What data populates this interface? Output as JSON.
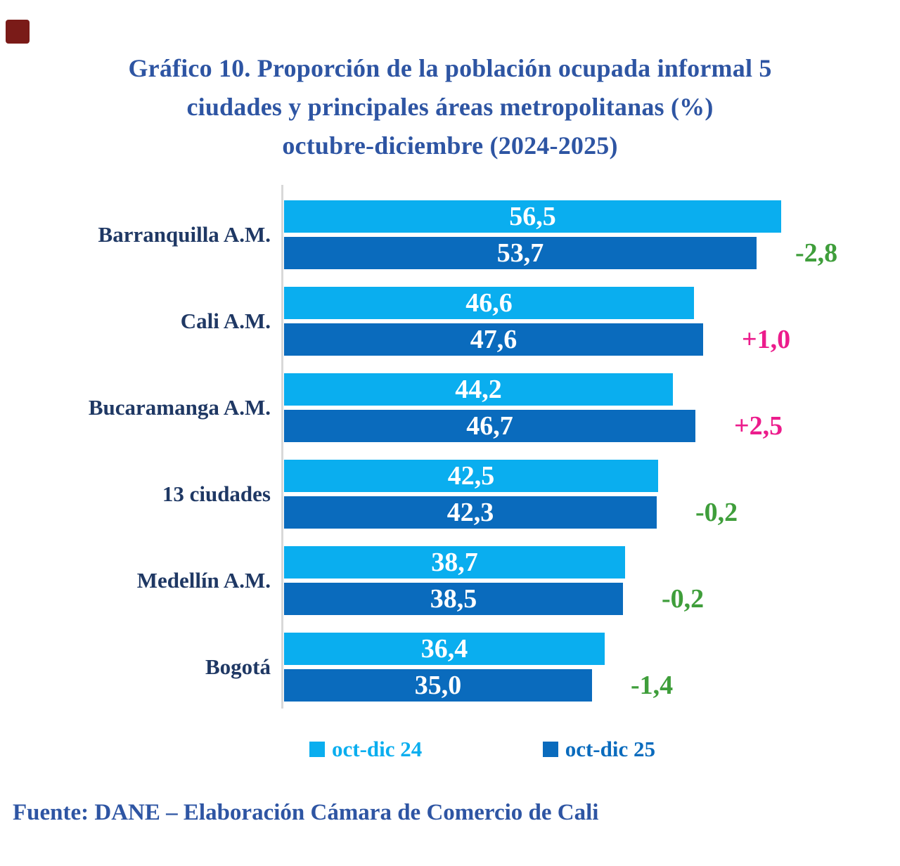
{
  "page": {
    "title_lines": [
      "Gráfico 10. Proporción de la población ocupada informal 5",
      "ciudades y principales áreas metropolitanas (%)",
      "octubre-diciembre (2024-2025)"
    ],
    "footer": "Fuente: DANE – Elaboración Cámara de Comercio de Cali"
  },
  "colors": {
    "title_blue": "#2e55a3",
    "category_navy": "#1f3864",
    "light_blue": "#0aaeef",
    "dark_blue": "#0a6bbd",
    "delta_green": "#3f9e3b",
    "delta_pink": "#ec1c8c",
    "axis_gray": "#d8d8d8",
    "red_marker": "#7a1b18"
  },
  "chart_data": {
    "type": "bar",
    "orientation": "horizontal",
    "title": "Gráfico 10. Proporción de la población ocupada informal 5 ciudades y principales áreas metropolitanas (%) octubre-diciembre (2024-2025)",
    "categories": [
      "Barranquilla A.M.",
      "Cali A.M.",
      "Bucaramanga A.M.",
      "13 ciudades",
      "Medellín A.M.",
      "Bogotá"
    ],
    "series": [
      {
        "name": "oct-dic 24",
        "color": "#0aaeef",
        "values": [
          56.5,
          46.6,
          44.2,
          42.5,
          38.7,
          36.4
        ],
        "labels": [
          "56,5",
          "46,6",
          "44,2",
          "42,5",
          "38,7",
          "36,4"
        ]
      },
      {
        "name": "oct-dic 25",
        "color": "#0a6bbd",
        "values": [
          53.7,
          47.6,
          46.7,
          42.3,
          38.5,
          35.0
        ],
        "labels": [
          "53,7",
          "47,6",
          "46,7",
          "42,3",
          "38,5",
          "35,0"
        ]
      }
    ],
    "deltas": [
      {
        "text": "-2,8",
        "color": "#3f9e3b"
      },
      {
        "text": "+1,0",
        "color": "#ec1c8c"
      },
      {
        "text": "+2,5",
        "color": "#ec1c8c"
      },
      {
        "text": "-0,2",
        "color": "#3f9e3b"
      },
      {
        "text": "-0,2",
        "color": "#3f9e3b"
      },
      {
        "text": "-1,4",
        "color": "#3f9e3b"
      }
    ],
    "xlim": [
      0,
      58.3
    ],
    "grid": false,
    "legend_position": "bottom",
    "value_format": "comma-decimal"
  }
}
